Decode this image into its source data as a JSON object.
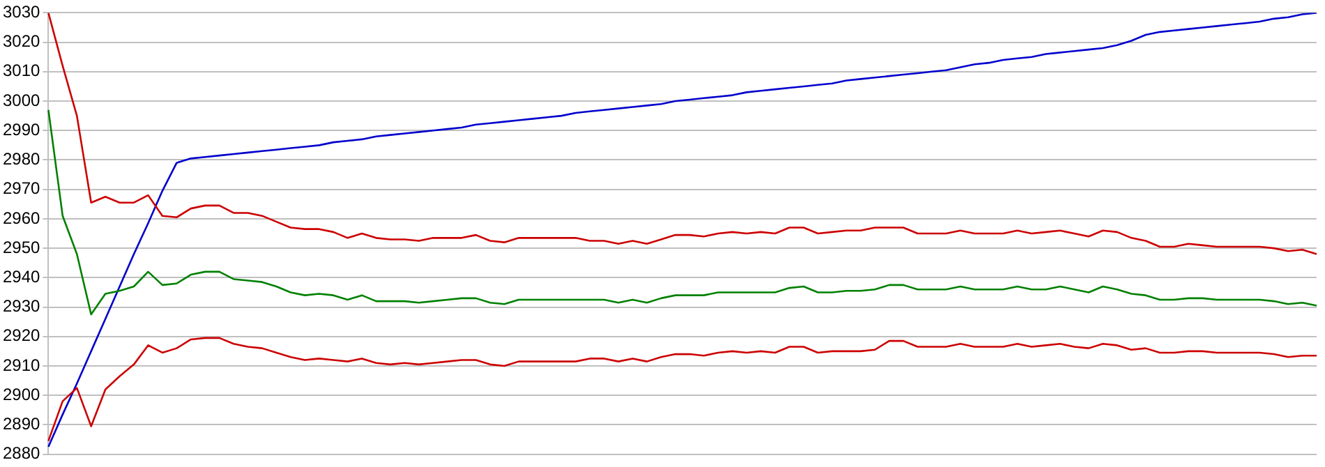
{
  "chart_data": {
    "type": "line",
    "categories": [
      null,
      null,
      null,
      null,
      null,
      null,
      null,
      null,
      null,
      null,
      null,
      null,
      null,
      null,
      null,
      null,
      null,
      null,
      null,
      null,
      null,
      null,
      null,
      null,
      null,
      null,
      null,
      null,
      null,
      null,
      null,
      null,
      null,
      null,
      null,
      null,
      null,
      null,
      null,
      null,
      null,
      null,
      null,
      null,
      null,
      null,
      null,
      null,
      null,
      null,
      null,
      null,
      null,
      null,
      null,
      null,
      null,
      null,
      null,
      null,
      null,
      null,
      null,
      null,
      null,
      null,
      null,
      null,
      null,
      null,
      null,
      null,
      null,
      null,
      null,
      null,
      null,
      null,
      null,
      null,
      null,
      null,
      null,
      null,
      null,
      null,
      null,
      null,
      null,
      null
    ],
    "series": [
      {
        "color": "#cc0000",
        "values": [
          3030,
          3012,
          2995,
          2965.5,
          2967.5,
          2965.5,
          2965.5,
          2968,
          2961,
          2960.5,
          2963.5,
          2964.5,
          2964.5,
          2962,
          2962,
          2961,
          2959,
          2957,
          2956.5,
          2956.5,
          2955.5,
          2953.5,
          2955,
          2953.5,
          2953,
          2953,
          2952.5,
          2953.5,
          2953.5,
          2953.5,
          2954.5,
          2952.5,
          2952,
          2953.5,
          2953.5,
          2953.5,
          2953.5,
          2953.5,
          2952.5,
          2952.5,
          2951.5,
          2952.5,
          2951.5,
          2953,
          2954.5,
          2954.5,
          2954,
          2955,
          2955.5,
          2955,
          2955.5,
          2955,
          2957,
          2957,
          2955,
          2955.5,
          2956,
          2956,
          2957,
          2957,
          2957,
          2955,
          2955,
          2955,
          2956,
          2955,
          2955,
          2955,
          2956,
          2955,
          2955.5,
          2956,
          2955,
          2954,
          2956,
          2955.5,
          2953.5,
          2952.5,
          2950.5,
          2950.5,
          2951.5,
          2951,
          2950.5,
          2950.5,
          2950.5,
          2950.5,
          2950,
          2949,
          2949.5,
          2948
        ]
      },
      {
        "color": "#008000",
        "values": [
          2997,
          2961,
          2948,
          2927.5,
          2934.5,
          2935.5,
          2937,
          2942,
          2937.5,
          2938,
          2941,
          2942,
          2942,
          2939.5,
          2939,
          2938.5,
          2937,
          2935,
          2934,
          2934.5,
          2934,
          2932.5,
          2934,
          2932,
          2932,
          2932,
          2931.5,
          2932,
          2932.5,
          2933,
          2933,
          2931.5,
          2931,
          2932.5,
          2932.5,
          2932.5,
          2932.5,
          2932.5,
          2932.5,
          2932.5,
          2931.5,
          2932.5,
          2931.5,
          2933,
          2934,
          2934,
          2934,
          2935,
          2935,
          2935,
          2935,
          2935,
          2936.5,
          2937,
          2935,
          2935,
          2935.5,
          2935.5,
          2936,
          2937.5,
          2937.5,
          2936,
          2936,
          2936,
          2937,
          2936,
          2936,
          2936,
          2937,
          2936,
          2936,
          2937,
          2936,
          2935,
          2937,
          2936,
          2934.5,
          2934,
          2932.5,
          2932.5,
          2933,
          2933,
          2932.5,
          2932.5,
          2932.5,
          2932.5,
          2932,
          2931,
          2931.5,
          2930.5
        ]
      },
      {
        "color": "#cc0000",
        "values": [
          2884.5,
          2898,
          2902.5,
          2889.5,
          2902,
          2906.5,
          2910.5,
          2917,
          2914.5,
          2916,
          2919,
          2919.5,
          2919.5,
          2917.5,
          2916.5,
          2916,
          2914.5,
          2913,
          2912,
          2912.5,
          2912,
          2911.5,
          2912.5,
          2911,
          2910.5,
          2911,
          2910.5,
          2911,
          2911.5,
          2912,
          2912,
          2910.5,
          2910,
          2911.5,
          2911.5,
          2911.5,
          2911.5,
          2911.5,
          2912.5,
          2912.5,
          2911.5,
          2912.5,
          2911.5,
          2913,
          2914,
          2914,
          2913.5,
          2914.5,
          2915,
          2914.5,
          2915,
          2914.5,
          2916.5,
          2916.5,
          2914.5,
          2915,
          2915,
          2915,
          2915.5,
          2918.5,
          2918.5,
          2916.5,
          2916.5,
          2916.5,
          2917.5,
          2916.5,
          2916.5,
          2916.5,
          2917.5,
          2916.5,
          2917,
          2917.5,
          2916.5,
          2916,
          2917.5,
          2917,
          2915.5,
          2916,
          2914.5,
          2914.5,
          2915,
          2915,
          2914.5,
          2914.5,
          2914.5,
          2914.5,
          2914,
          2913,
          2913.5,
          2913.5
        ]
      },
      {
        "color": "#0000cc",
        "values": [
          2882.5,
          2893.5,
          2904,
          2915,
          2926,
          2937,
          2948,
          2958.5,
          2969.5,
          2979,
          2980.5,
          2981,
          2981.5,
          2982,
          2982.5,
          2983,
          2983.5,
          2984,
          2984.5,
          2985,
          2986,
          2986.5,
          2987,
          2988,
          2988.5,
          2989,
          2989.5,
          2990,
          2990.5,
          2991,
          2992,
          2992.5,
          2993,
          2993.5,
          2994,
          2994.5,
          2995,
          2996,
          2996.5,
          2997,
          2997.5,
          2998,
          2998.5,
          2999,
          3000,
          3000.5,
          3001,
          3001.5,
          3002,
          3003,
          3003.5,
          3004,
          3004.5,
          3005,
          3005.5,
          3006,
          3007,
          3007.5,
          3008,
          3008.5,
          3009,
          3009.5,
          3010,
          3010.5,
          3011.5,
          3012.5,
          3013,
          3014,
          3014.5,
          3015,
          3016,
          3016.5,
          3017,
          3017.5,
          3018,
          3019,
          3020.5,
          3022.5,
          3023.5,
          3024,
          3024.5,
          3025,
          3025.5,
          3026,
          3026.5,
          3027,
          3028,
          3028.5,
          3029.5,
          3030
        ]
      }
    ],
    "ylim": [
      2880,
      3030
    ],
    "yticks": [
      2880,
      2890,
      2900,
      2910,
      2920,
      2930,
      2940,
      2950,
      2960,
      2970,
      2980,
      2990,
      3000,
      3010,
      3020,
      3030
    ],
    "grid": "y",
    "legend": false,
    "tick_labels": "y",
    "marker": "none",
    "line_style": "solid"
  }
}
